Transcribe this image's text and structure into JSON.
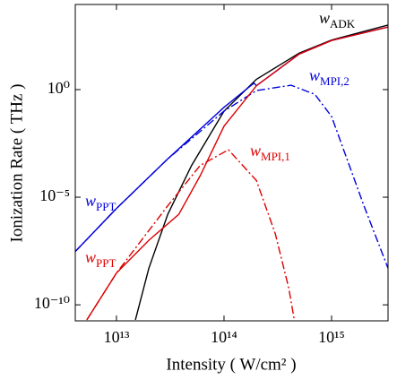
{
  "chart_data": {
    "type": "line",
    "x_label": "Intensity ( W/cm² )",
    "y_label": "Ionization Rate ( THz )",
    "log_x": true,
    "log_y": true,
    "xlim": [
      4140000000000.0,
      3350000000000000.0
    ],
    "ylim": [
      1.8e-11,
      9000
    ],
    "xticks": [
      {
        "value": 10000000000000.0,
        "label": "10¹³"
      },
      {
        "value": 100000000000000.0,
        "label": "10¹⁴"
      },
      {
        "value": 1000000000000000.0,
        "label": "10¹⁵"
      }
    ],
    "yticks": [
      {
        "value": 1e-10,
        "label": "10⁻¹⁰"
      },
      {
        "value": 1e-05,
        "label": "10⁻⁵"
      },
      {
        "value": 1,
        "label": "10⁰"
      }
    ],
    "series": [
      {
        "name": "w ADK",
        "color": "#000000",
        "dash": "solid",
        "x": [
          15000000000000.0,
          20000000000000.0,
          30000000000000.0,
          50000000000000.0,
          100000000000000.0,
          200000000000000.0,
          500000000000000.0,
          1000000000000000.0,
          3350000000000000.0
        ],
        "values": [
          2e-11,
          5e-09,
          1.6e-06,
          0.0003,
          0.1,
          3,
          50,
          200,
          1000
        ]
      },
      {
        "name": "w PPT (blue)",
        "color": "#0000dd",
        "dash": "solid",
        "x": [
          4140000000000.0,
          10000000000000.0,
          30000000000000.0,
          100000000000000.0,
          190000000000000.0,
          200000000000000.0,
          500000000000000.0,
          1000000000000000.0,
          3350000000000000.0
        ],
        "values": [
          3e-08,
          3e-06,
          0.0006,
          0.15,
          2,
          1.5,
          45,
          190,
          800
        ]
      },
      {
        "name": "w MPI,2",
        "color": "#0000dd",
        "dash": "dashdot",
        "x": [
          4140000000000.0,
          10000000000000.0,
          30000000000000.0,
          100000000000000.0,
          200000000000000.0,
          420000000000000.0,
          700000000000000.0,
          1000000000000000.0,
          2000000000000000.0,
          3350000000000000.0
        ],
        "values": [
          3e-08,
          3e-06,
          0.0006,
          0.1,
          0.9,
          1.6,
          0.6,
          0.056,
          4e-06,
          5e-09
        ]
      },
      {
        "name": "w PPT (red)",
        "color": "#dd0000",
        "dash": "solid",
        "x": [
          5300000000000.0,
          10000000000000.0,
          20000000000000.0,
          38000000000000.0,
          60000000000000.0,
          100000000000000.0,
          200000000000000.0,
          500000000000000.0,
          1000000000000000.0,
          3350000000000000.0
        ],
        "values": [
          2e-11,
          3e-09,
          1e-07,
          1.6e-06,
          0.0001,
          0.02,
          1.5,
          45,
          190,
          800
        ]
      },
      {
        "name": "w MPI,1",
        "color": "#dd0000",
        "dash": "dashdot",
        "x": [
          5300000000000.0,
          10000000000000.0,
          30000000000000.0,
          60000000000000.0,
          110000000000000.0,
          200000000000000.0,
          300000000000000.0,
          400000000000000.0,
          450000000000000.0
        ],
        "values": [
          2e-11,
          3e-09,
          4e-06,
          0.0003,
          0.0016,
          6e-05,
          2e-07,
          6e-10,
          2e-11
        ]
      }
    ],
    "annotations": [
      {
        "text": "w",
        "sub": "ADK",
        "color": "#000000"
      },
      {
        "text": "w",
        "sub": "MPI,2",
        "color": "#0000dd"
      },
      {
        "text": "w",
        "sub": "MPI,1",
        "color": "#dd0000"
      },
      {
        "text": "w",
        "sub": "PPT",
        "color": "#0000dd"
      },
      {
        "text": "w",
        "sub": "PPT",
        "color": "#dd0000"
      }
    ]
  }
}
